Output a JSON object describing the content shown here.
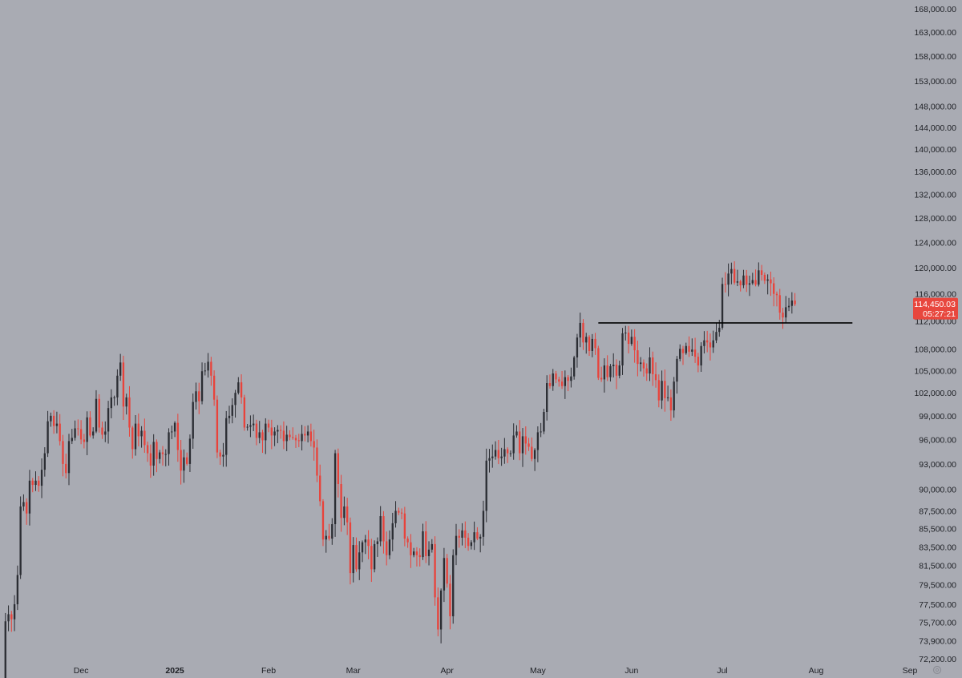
{
  "chart_data": {
    "type": "candlestick",
    "title": "",
    "xlabel": "",
    "ylabel": "",
    "y_scale": "log",
    "ylim": [
      72200,
      168000
    ],
    "x_range": [
      "2024-11-05",
      "2025-09-01"
    ],
    "grid": false,
    "y_ticks": [
      "168,000.00",
      "163,000.00",
      "158,000.00",
      "153,000.00",
      "148,000.00",
      "144,000.00",
      "140,000.00",
      "136,000.00",
      "132,000.00",
      "128,000.00",
      "124,000.00",
      "120,000.00",
      "116,000.00",
      "112,000.00",
      "108,000.00",
      "105,000.00",
      "102,000.00",
      "99,000.00",
      "96,000.00",
      "93,000.00",
      "90,000.00",
      "87,500.00",
      "85,500.00",
      "83,500.00",
      "81,500.00",
      "79,500.00",
      "77,500.00",
      "75,700.00",
      "73,900.00",
      "72,200.00"
    ],
    "x_ticks": [
      {
        "label": "Dec",
        "date": "2024-12-01",
        "bold": false
      },
      {
        "label": "2025",
        "date": "2025-01-01",
        "bold": true
      },
      {
        "label": "Feb",
        "date": "2025-02-01",
        "bold": false
      },
      {
        "label": "Mar",
        "date": "2025-03-01",
        "bold": false
      },
      {
        "label": "Apr",
        "date": "2025-04-01",
        "bold": false
      },
      {
        "label": "May",
        "date": "2025-05-01",
        "bold": false
      },
      {
        "label": "Jun",
        "date": "2025-06-01",
        "bold": false
      },
      {
        "label": "Jul",
        "date": "2025-07-01",
        "bold": false
      },
      {
        "label": "Aug",
        "date": "2025-08-01",
        "bold": false
      },
      {
        "label": "Sep",
        "date": "2025-09-01",
        "bold": false
      }
    ],
    "start_date": "2024-11-05",
    "closes": [
      69500,
      75800,
      76500,
      76000,
      77500,
      80500,
      88000,
      88500,
      87200,
      91000,
      90500,
      91000,
      90400,
      92300,
      94300,
      98300,
      99000,
      97700,
      98000,
      95800,
      93000,
      91900,
      95800,
      96200,
      97400,
      97300,
      96000,
      95700,
      98800,
      96500,
      97000,
      101200,
      97500,
      96600,
      97000,
      100000,
      101400,
      101400,
      104300,
      106100,
      100200,
      101400,
      97500,
      94800,
      98000,
      96400,
      97100,
      95300,
      94300,
      92800,
      95700,
      93600,
      94400,
      94200,
      94200,
      96900,
      97000,
      98100,
      94700,
      92200,
      93800,
      93000,
      96100,
      100800,
      102200,
      100900,
      104900,
      105000,
      106200,
      104300,
      101100,
      94400,
      93900,
      94100,
      98700,
      99000,
      100400,
      102000,
      103400,
      101400,
      97500,
      97600,
      97800,
      98000,
      96200,
      96900,
      95900,
      98000,
      97500,
      96500,
      97000,
      97200,
      97100,
      95800,
      96600,
      96300,
      96200,
      95900,
      95800,
      96700,
      96500,
      97000,
      95800,
      95000,
      91600,
      88600,
      84300,
      84700,
      84400,
      86000,
      94300,
      90600,
      86700,
      88000,
      86200,
      80700,
      83700,
      81100,
      82900,
      84000,
      84300,
      83600,
      81100,
      83800,
      84100,
      86900,
      84100,
      82600,
      84300,
      86100,
      87500,
      87300,
      87200,
      84400,
      84000,
      82600,
      83000,
      82600,
      82400,
      85200,
      82500,
      83200,
      83800,
      78200,
      75000,
      78900,
      82300,
      79600,
      76300,
      82600,
      84700,
      84500,
      85300,
      84500,
      83600,
      84000,
      85100,
      84400,
      84600,
      87500,
      93400,
      93700,
      93900,
      94700,
      93700,
      93900,
      94800,
      94300,
      94300,
      96500,
      97000,
      94300,
      96400,
      95500,
      95100,
      93600,
      94700,
      96900,
      97000,
      99500,
      103300,
      102900,
      104600,
      103800,
      103500,
      102900,
      104100,
      103600,
      104200,
      106800,
      109600,
      111700,
      108900,
      109700,
      107700,
      109400,
      108100,
      104000,
      103800,
      105700,
      104100,
      105600,
      105800,
      104300,
      105700,
      110200,
      110300,
      108700,
      109700,
      107800,
      105900,
      106100,
      105300,
      104600,
      106800,
      104500,
      103700,
      101000,
      103600,
      101300,
      101400,
      99700,
      103500,
      106600,
      108000,
      107400,
      108400,
      107600,
      107900,
      106900,
      105700,
      108400,
      109200,
      108900,
      108200,
      109200,
      110400,
      111000,
      117500,
      117400,
      119100,
      119800,
      117700,
      117900,
      117300,
      118800,
      117400,
      117600,
      118100,
      117400,
      119600,
      118900,
      118000,
      118200,
      117600,
      116000,
      115800,
      113200,
      112500,
      114000,
      114200,
      115000,
      114450
    ]
  },
  "annotations": {
    "horizontal_level": {
      "value": 111700,
      "from": "2025-05-21",
      "to": "2025-08-13"
    }
  },
  "last_price": {
    "price_label": "114,450.03",
    "countdown": "05:27:21",
    "value": 114450
  },
  "colors": {
    "background": "#a9abb3",
    "up": "#2b2d33",
    "down": "#e8433b",
    "level_line": "#000000",
    "price_box": "#e8473e",
    "axis_text": "#1d1f24"
  }
}
